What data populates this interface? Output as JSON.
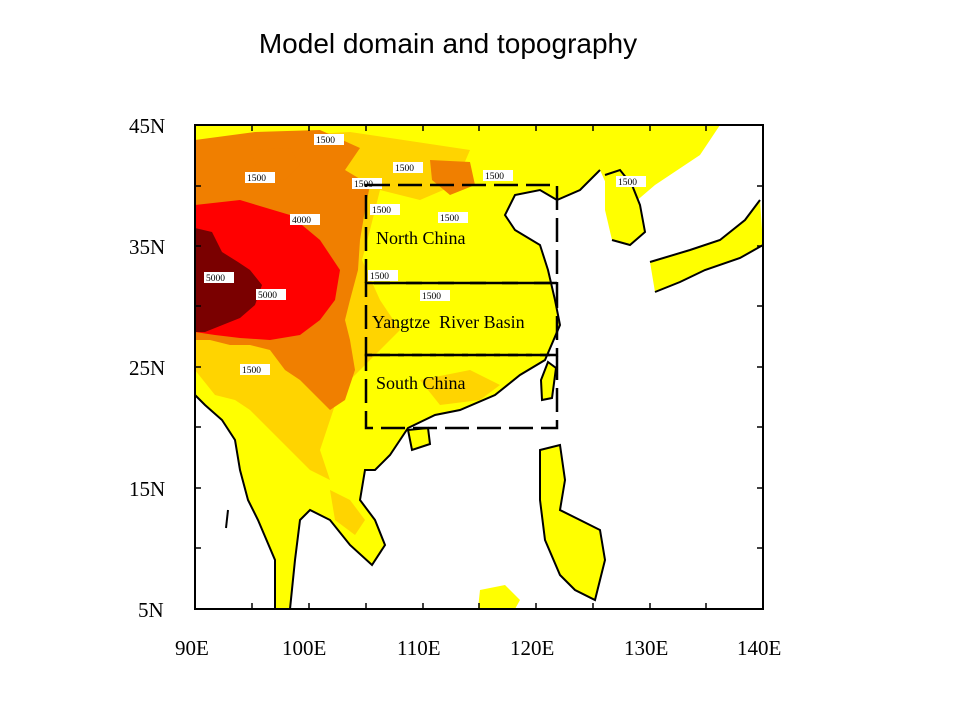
{
  "page": {
    "title": "Model domain and topography"
  },
  "map": {
    "lat_range": [
      5,
      45
    ],
    "lon_range": [
      90,
      140
    ],
    "lat_ticks": [
      "45N",
      "35N",
      "25N",
      "15N",
      "5N"
    ],
    "lon_ticks": [
      "90E",
      "100E",
      "110E",
      "120E",
      "130E",
      "140E"
    ],
    "colors": {
      "terrain_lt_500": "#FFFF00",
      "terrain_500_1500": "#FFD400",
      "terrain_1500_4000": "#F07F00",
      "terrain_4000_5000": "#FF0000",
      "terrain_gt_5000": "#7A0000",
      "coastline": "#000000",
      "box_outline": "#000000"
    },
    "regions": [
      {
        "name": "North China",
        "lon": [
          105,
          122
        ],
        "lat": [
          32,
          40
        ]
      },
      {
        "name": "Yangtze  River Basin",
        "lon": [
          105,
          122
        ],
        "lat": [
          26,
          32
        ]
      },
      {
        "name": "South China",
        "lon": [
          105,
          122
        ],
        "lat": [
          20,
          26
        ]
      }
    ],
    "contour_labels": [
      "1500",
      "1500",
      "1500",
      "1500",
      "1500",
      "1500",
      "1500",
      "1500",
      "1500",
      "1500",
      "1500",
      "4000",
      "5000",
      "5000",
      "1500"
    ]
  }
}
